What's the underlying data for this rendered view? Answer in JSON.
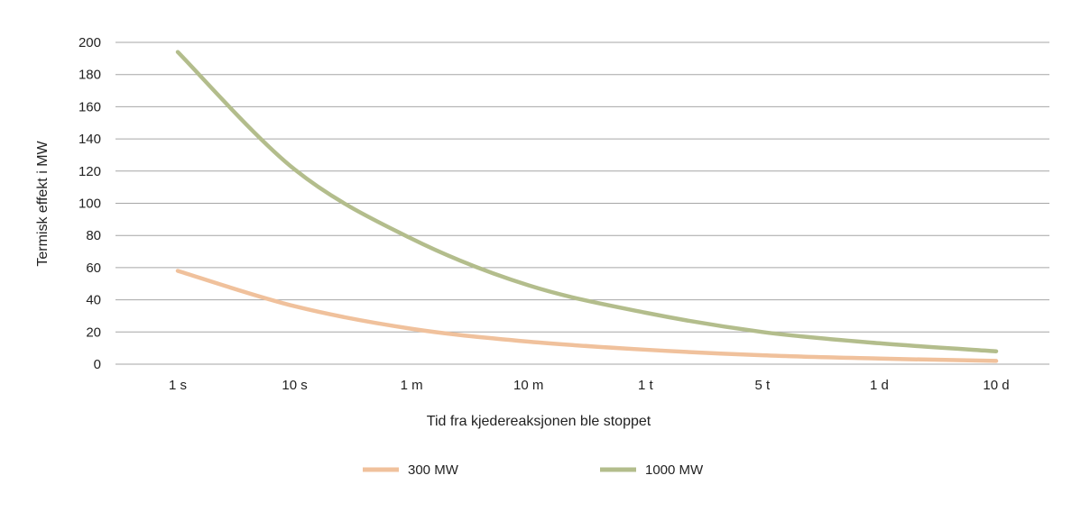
{
  "chart_data": {
    "type": "line",
    "title": "",
    "xlabel": "Tid fra kjedereaksjonen ble stoppet",
    "ylabel": "Termisk effekt i MW",
    "ylim": [
      0,
      200
    ],
    "yticks": [
      0,
      20,
      40,
      60,
      80,
      100,
      120,
      140,
      160,
      180,
      200
    ],
    "categories": [
      "1 s",
      "10 s",
      "1 m",
      "10 m",
      "1 t",
      "5 t",
      "1 d",
      "10 d"
    ],
    "grid": true,
    "legend_position": "bottom",
    "series": [
      {
        "name": "300 MW",
        "color": "#f0c19c",
        "values": [
          58,
          36,
          22,
          14,
          9,
          5.5,
          3.5,
          2
        ]
      },
      {
        "name": "1000 MW",
        "color": "#b3bd8c",
        "values": [
          194,
          121,
          78,
          49,
          32,
          20,
          13,
          8
        ]
      }
    ]
  }
}
